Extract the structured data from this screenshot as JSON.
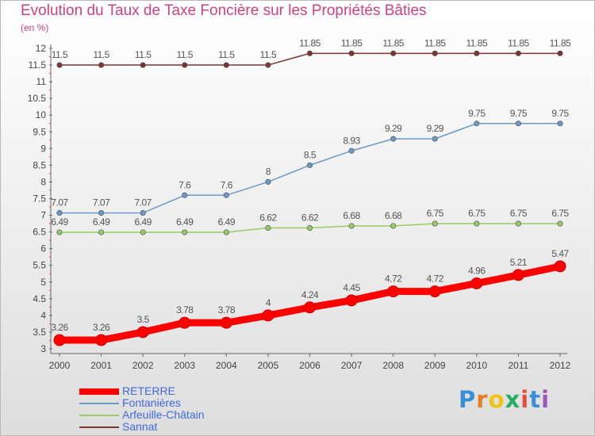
{
  "chart_data": {
    "type": "line",
    "title": "Evolution du Taux de Taxe Foncière sur les Propriétés Bâties",
    "unit_label": "(en %)",
    "x": [
      "2000",
      "2001",
      "2002",
      "2003",
      "2004",
      "2005",
      "2006",
      "2007",
      "2008",
      "2009",
      "2010",
      "2011",
      "2012"
    ],
    "ylim": [
      3,
      12
    ],
    "yticks": [
      "3",
      "3.5",
      "4",
      "4.5",
      "5",
      "5.5",
      "6",
      "6.5",
      "7",
      "7.5",
      "8",
      "8.5",
      "9",
      "9.5",
      "10",
      "10.5",
      "11",
      "11.5",
      "12"
    ],
    "series": [
      {
        "name": "RETERRE",
        "color": "#ff0000",
        "values": [
          3.26,
          3.26,
          3.5,
          3.78,
          3.78,
          4,
          4.24,
          4.45,
          4.72,
          4.72,
          4.96,
          5.21,
          5.47
        ],
        "labels": [
          "3.26",
          "3.26",
          "3.5",
          "3.78",
          "3.78",
          "4",
          "4.24",
          "4.45",
          "4.72",
          "4.72",
          "4.96",
          "5.21",
          "5.47"
        ]
      },
      {
        "name": "Fontanières",
        "color": "#6c9bc8",
        "values": [
          7.07,
          7.07,
          7.07,
          7.6,
          7.6,
          8,
          8.5,
          8.93,
          9.29,
          9.29,
          9.75,
          9.75,
          9.75
        ],
        "labels": [
          "7.07",
          "7.07",
          "7.07",
          "7.6",
          "7.6",
          "8",
          "8.5",
          "8.93",
          "9.29",
          "9.29",
          "9.75",
          "9.75",
          "9.75"
        ]
      },
      {
        "name": "Arfeuille-Châtain",
        "color": "#99cc66",
        "values": [
          6.49,
          6.49,
          6.49,
          6.49,
          6.49,
          6.62,
          6.62,
          6.68,
          6.68,
          6.75,
          6.75,
          6.75,
          6.75
        ],
        "labels": [
          "6.49",
          "6.49",
          "6.49",
          "6.49",
          "6.49",
          "6.62",
          "6.62",
          "6.68",
          "6.68",
          "6.75",
          "6.75",
          "6.75",
          "6.75"
        ]
      },
      {
        "name": "Sannat",
        "color": "#7b3535",
        "values": [
          11.5,
          11.5,
          11.5,
          11.5,
          11.5,
          11.5,
          11.85,
          11.85,
          11.85,
          11.85,
          11.85,
          11.85,
          11.85
        ],
        "labels": [
          "11.5",
          "11.5",
          "11.5",
          "11.5",
          "11.5",
          "11.5",
          "11.85",
          "11.85",
          "11.85",
          "11.85",
          "11.85",
          "11.85",
          "11.85"
        ]
      }
    ],
    "grid": false,
    "legend_position": "bottom-left"
  },
  "logo": {
    "letters": [
      "P",
      "r",
      "o",
      "x",
      "i",
      "t",
      "i"
    ],
    "colors": [
      "#3b8fd8",
      "#e67e22",
      "#f1c40f",
      "#27ae60",
      "#e74c3c",
      "#3b8fd8",
      "#9b59b6"
    ]
  }
}
